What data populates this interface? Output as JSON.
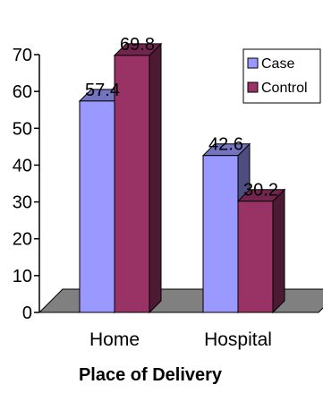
{
  "chart_data": {
    "type": "bar",
    "categories": [
      "Home",
      "Hospital"
    ],
    "series": [
      {
        "name": "Case",
        "values": [
          57.4,
          42.6
        ],
        "color": "#9999ff"
      },
      {
        "name": "Control",
        "values": [
          69.8,
          30.2
        ],
        "color": "#993366"
      }
    ],
    "data_labels": [
      [
        "57.4",
        "42.6"
      ],
      [
        "69.8",
        "30.2"
      ]
    ],
    "xlabel": "Place of Delivery",
    "ylabel": "",
    "ylim": [
      0,
      70
    ],
    "yticks": [
      0,
      10,
      20,
      30,
      40,
      50,
      60,
      70
    ],
    "legend_position": "top-right",
    "grid": false,
    "three_d": true
  }
}
